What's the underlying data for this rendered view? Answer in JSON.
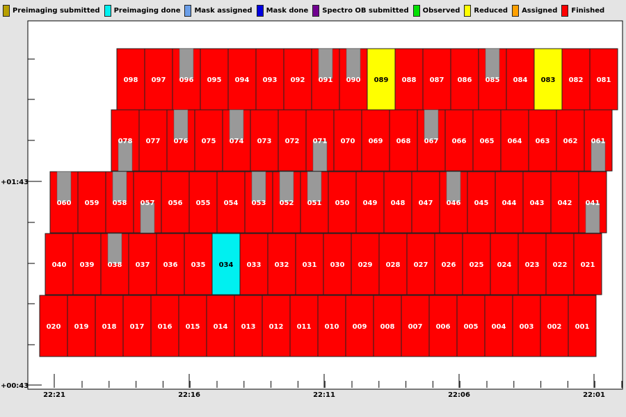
{
  "legend": [
    {
      "label": "Preimaging submitted",
      "color": "#b8a000"
    },
    {
      "label": "Preimaging done",
      "color": "#00f0f0"
    },
    {
      "label": "Mask assigned",
      "color": "#6a9ee8"
    },
    {
      "label": "Mask done",
      "color": "#0000e0"
    },
    {
      "label": "Spectro OB submitted",
      "color": "#700090"
    },
    {
      "label": "Observed",
      "color": "#00e000"
    },
    {
      "label": "Reduced",
      "color": "#ffff00"
    },
    {
      "label": "Assigned",
      "color": "#ffa000"
    },
    {
      "label": "Finished",
      "color": "#ff0000"
    }
  ],
  "chart_data": {
    "type": "heatmap",
    "x_axis": {
      "ticks": [
        "22:21",
        "22:16",
        "22:11",
        "22:06",
        "22:01"
      ]
    },
    "y_axis": {
      "ticks": [
        "+00:43",
        "+01:43"
      ]
    },
    "grid": false,
    "status_colors": {
      "Finished": "#ff0000",
      "Reduced": "#ffff00",
      "Preimaging done": "#00f0f0"
    },
    "gap_color": "#999999",
    "rows": [
      {
        "fields": [
          "098",
          "097",
          "096",
          "095",
          "094",
          "093",
          "092",
          "091",
          "090",
          "089",
          "088",
          "087",
          "086",
          "085",
          "084",
          "083",
          "082",
          "081"
        ],
        "statuses": {
          "089": "Reduced",
          "083": "Reduced"
        },
        "gaps_top": [
          "096",
          "091",
          "090",
          "085"
        ],
        "gaps_bottom": []
      },
      {
        "fields": [
          "078",
          "077",
          "076",
          "075",
          "074",
          "073",
          "072",
          "071",
          "070",
          "069",
          "068",
          "067",
          "066",
          "065",
          "064",
          "063",
          "062",
          "061"
        ],
        "statuses": {},
        "gaps_top": [
          "076",
          "074",
          "067"
        ],
        "gaps_bottom": [
          "078",
          "071",
          "061"
        ]
      },
      {
        "fields": [
          "060",
          "059",
          "058",
          "057",
          "056",
          "055",
          "054",
          "053",
          "052",
          "051",
          "050",
          "049",
          "048",
          "047",
          "046",
          "045",
          "044",
          "043",
          "042",
          "041"
        ],
        "statuses": {},
        "gaps_top": [
          "060",
          "058",
          "053",
          "052",
          "051",
          "046"
        ],
        "gaps_bottom": [
          "057",
          "041"
        ]
      },
      {
        "fields": [
          "040",
          "039",
          "038",
          "037",
          "036",
          "035",
          "034",
          "033",
          "032",
          "031",
          "030",
          "029",
          "028",
          "027",
          "026",
          "025",
          "024",
          "023",
          "022",
          "021"
        ],
        "statuses": {
          "034": "Preimaging done"
        },
        "gaps_top": [
          "038"
        ],
        "gaps_bottom": []
      },
      {
        "fields": [
          "020",
          "019",
          "018",
          "017",
          "016",
          "015",
          "014",
          "013",
          "012",
          "011",
          "010",
          "009",
          "008",
          "007",
          "006",
          "005",
          "004",
          "003",
          "002",
          "001"
        ],
        "statuses": {},
        "gaps_top": [],
        "gaps_bottom": []
      }
    ],
    "default_status": "Finished"
  }
}
